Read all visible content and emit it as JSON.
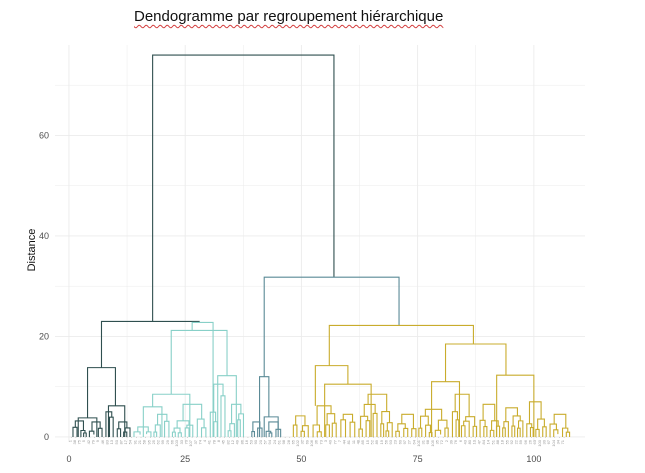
{
  "page": {
    "title": "Dendogramme par regroupement hiérarchique"
  },
  "chart_data": {
    "type": "dendrogram",
    "title": "Dendogramme par regroupement hiérarchique",
    "xlabel": "",
    "ylabel": "Distance",
    "xlim": [
      -3,
      111
    ],
    "ylim": [
      -1,
      78
    ],
    "x_ticks": [
      0,
      25,
      50,
      75,
      100
    ],
    "y_ticks": [
      0,
      20,
      40,
      60
    ],
    "grid": true,
    "colors": {
      "dark": "#2f4f4f",
      "teal": "#88d0c8",
      "slate": "#5a8a96",
      "gold": "#c9ac2c",
      "grid": "#ebebeb"
    },
    "merges": [
      {
        "x1": 18,
        "x2": 57,
        "height": 76,
        "children_height": [
          23,
          31.8
        ],
        "color": "dark"
      },
      {
        "x1": 7,
        "x2": 28,
        "height": 23,
        "children_height": [
          13.8,
          22.8
        ],
        "color": "dark"
      },
      {
        "x1": 42,
        "x2": 71,
        "height": 31.8,
        "children_height": [
          12,
          22.2
        ],
        "color": "slate"
      },
      {
        "x1": 4,
        "x2": 10,
        "height": 13.8,
        "children_height": [
          3.8,
          6.2
        ],
        "color": "dark"
      },
      {
        "x1": 2,
        "x2": 6,
        "height": 3.8,
        "children_height": [
          0,
          0
        ],
        "color": "dark"
      },
      {
        "x1": 8.5,
        "x2": 12,
        "height": 6.2,
        "children_height": [
          0,
          0
        ],
        "color": "dark"
      },
      {
        "x1": 26.5,
        "x2": 31,
        "height": 22.8,
        "children_height": [
          21.2,
          0
        ],
        "color": "teal"
      },
      {
        "x1": 22,
        "x2": 34,
        "height": 21.2,
        "children_height": [
          8.5,
          12.2
        ],
        "color": "teal"
      },
      {
        "x1": 18,
        "x2": 26,
        "height": 8.5,
        "children_height": [
          6,
          0
        ],
        "color": "teal"
      },
      {
        "x1": 16,
        "x2": 20,
        "height": 6,
        "children_height": [
          0,
          0
        ],
        "color": "teal"
      },
      {
        "x1": 32,
        "x2": 36,
        "height": 12.2,
        "children_height": [
          0,
          0
        ],
        "color": "teal"
      },
      {
        "x1": 41,
        "x2": 43,
        "height": 12,
        "children_height": [
          0,
          4
        ],
        "color": "slate"
      },
      {
        "x1": 42,
        "x2": 45,
        "height": 4,
        "children_height": [
          0,
          0
        ],
        "color": "slate"
      },
      {
        "x1": 56,
        "x2": 87,
        "height": 22.2,
        "children_height": [
          14.2,
          18.5
        ],
        "color": "gold"
      },
      {
        "x1": 53,
        "x2": 60,
        "height": 14.2,
        "children_height": [
          6.2,
          10.5
        ],
        "color": "gold"
      },
      {
        "x1": 55,
        "x2": 65,
        "height": 10.5,
        "children_height": [
          0,
          0
        ],
        "color": "gold"
      },
      {
        "x1": 81,
        "x2": 94,
        "height": 18.5,
        "children_height": [
          11,
          12.3
        ],
        "color": "gold"
      },
      {
        "x1": 78,
        "x2": 84,
        "height": 11,
        "children_height": [
          0,
          0
        ],
        "color": "gold"
      },
      {
        "x1": 92,
        "x2": 100,
        "height": 12.3,
        "children_height": [
          0,
          0
        ],
        "color": "gold"
      }
    ],
    "leaf_count": 107
  }
}
